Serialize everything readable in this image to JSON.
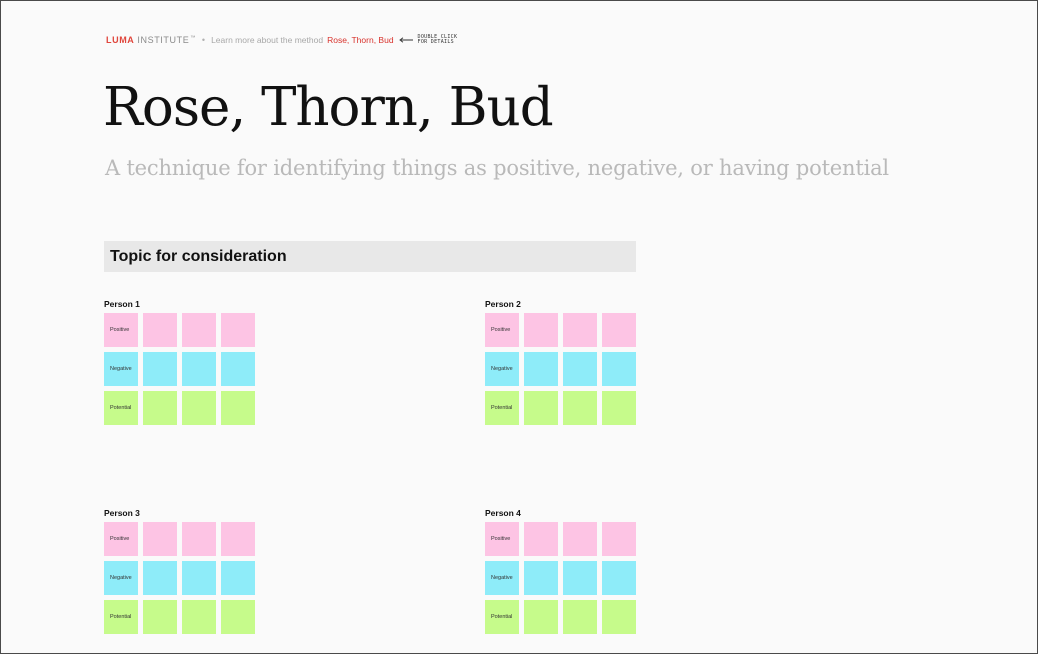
{
  "header": {
    "brand_luma": "LUMA",
    "brand_institute": "INSTITUTE",
    "brand_tm": "™",
    "separator": "•",
    "learn_text": "Learn more about the method",
    "method_link": "Rose, Thorn, Bud",
    "hint_line1": "DOUBLE CLICK",
    "hint_line2": "FOR DETAILS"
  },
  "page": {
    "title": "Rose, Thorn, Bud",
    "subtitle": "A technique for identifying things as positive, negative, or having potential"
  },
  "topic": {
    "label": "Topic for consideration"
  },
  "row_labels": {
    "positive": "Positive",
    "negative": "Negative",
    "potential": "Potential"
  },
  "persons": [
    {
      "name": "Person 1"
    },
    {
      "name": "Person 2"
    },
    {
      "name": "Person 3"
    },
    {
      "name": "Person 4"
    }
  ],
  "colors": {
    "rose": "#fdc4e4",
    "thorn": "#8eecf9",
    "bud": "#c6fb8b",
    "brand_red": "#e0463c",
    "link_red": "#d8322c"
  }
}
